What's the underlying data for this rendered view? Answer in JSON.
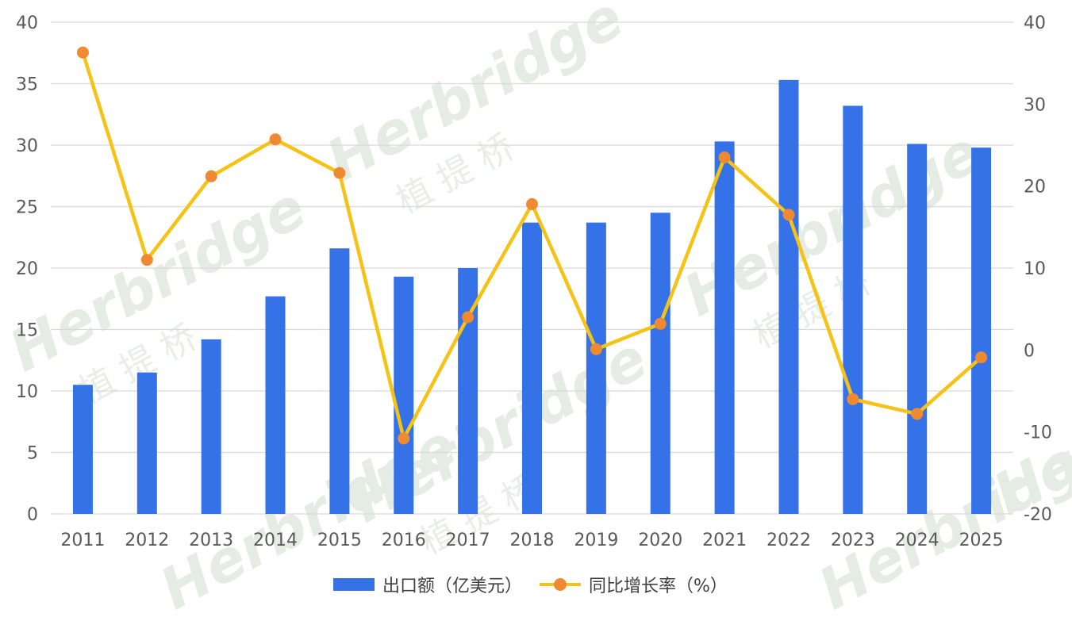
{
  "watermark": {
    "brand": "Herbridge",
    "cn": "植 提 桥"
  },
  "colors": {
    "bar": "#3572e8",
    "line": "#f5c215",
    "marker": "#ef8a33",
    "grid": "#d9d9d9",
    "axis_text": "#595959"
  },
  "chart_data": {
    "type": "bar",
    "categories": [
      "2011",
      "2012",
      "2013",
      "2014",
      "2015",
      "2016",
      "2017",
      "2018",
      "2019",
      "2020",
      "2021",
      "2022",
      "2023",
      "2024",
      "2025"
    ],
    "series": [
      {
        "name": "出口额（亿美元）",
        "type": "bar",
        "axis": "left",
        "values": [
          10.5,
          11.5,
          14.2,
          17.7,
          21.6,
          19.3,
          20.0,
          23.7,
          23.7,
          24.5,
          30.3,
          35.3,
          33.2,
          30.1,
          29.8
        ]
      },
      {
        "name": "同比增长率（%）",
        "type": "line",
        "axis": "right",
        "values": [
          36.3,
          11.0,
          21.2,
          25.7,
          21.6,
          -10.8,
          4.0,
          17.8,
          0.1,
          3.2,
          23.5,
          16.5,
          -6.0,
          -7.8,
          -0.9
        ]
      }
    ],
    "y_left": {
      "ylim": [
        0,
        40
      ],
      "ticks": [
        "0",
        "5",
        "10",
        "15",
        "20",
        "25",
        "30",
        "35",
        "40"
      ]
    },
    "y_right": {
      "ylim": [
        -20,
        40
      ],
      "ticks": [
        "-20",
        "-10",
        "0",
        "10",
        "20",
        "30",
        "40"
      ]
    },
    "grid": true,
    "legend": "bottom"
  }
}
